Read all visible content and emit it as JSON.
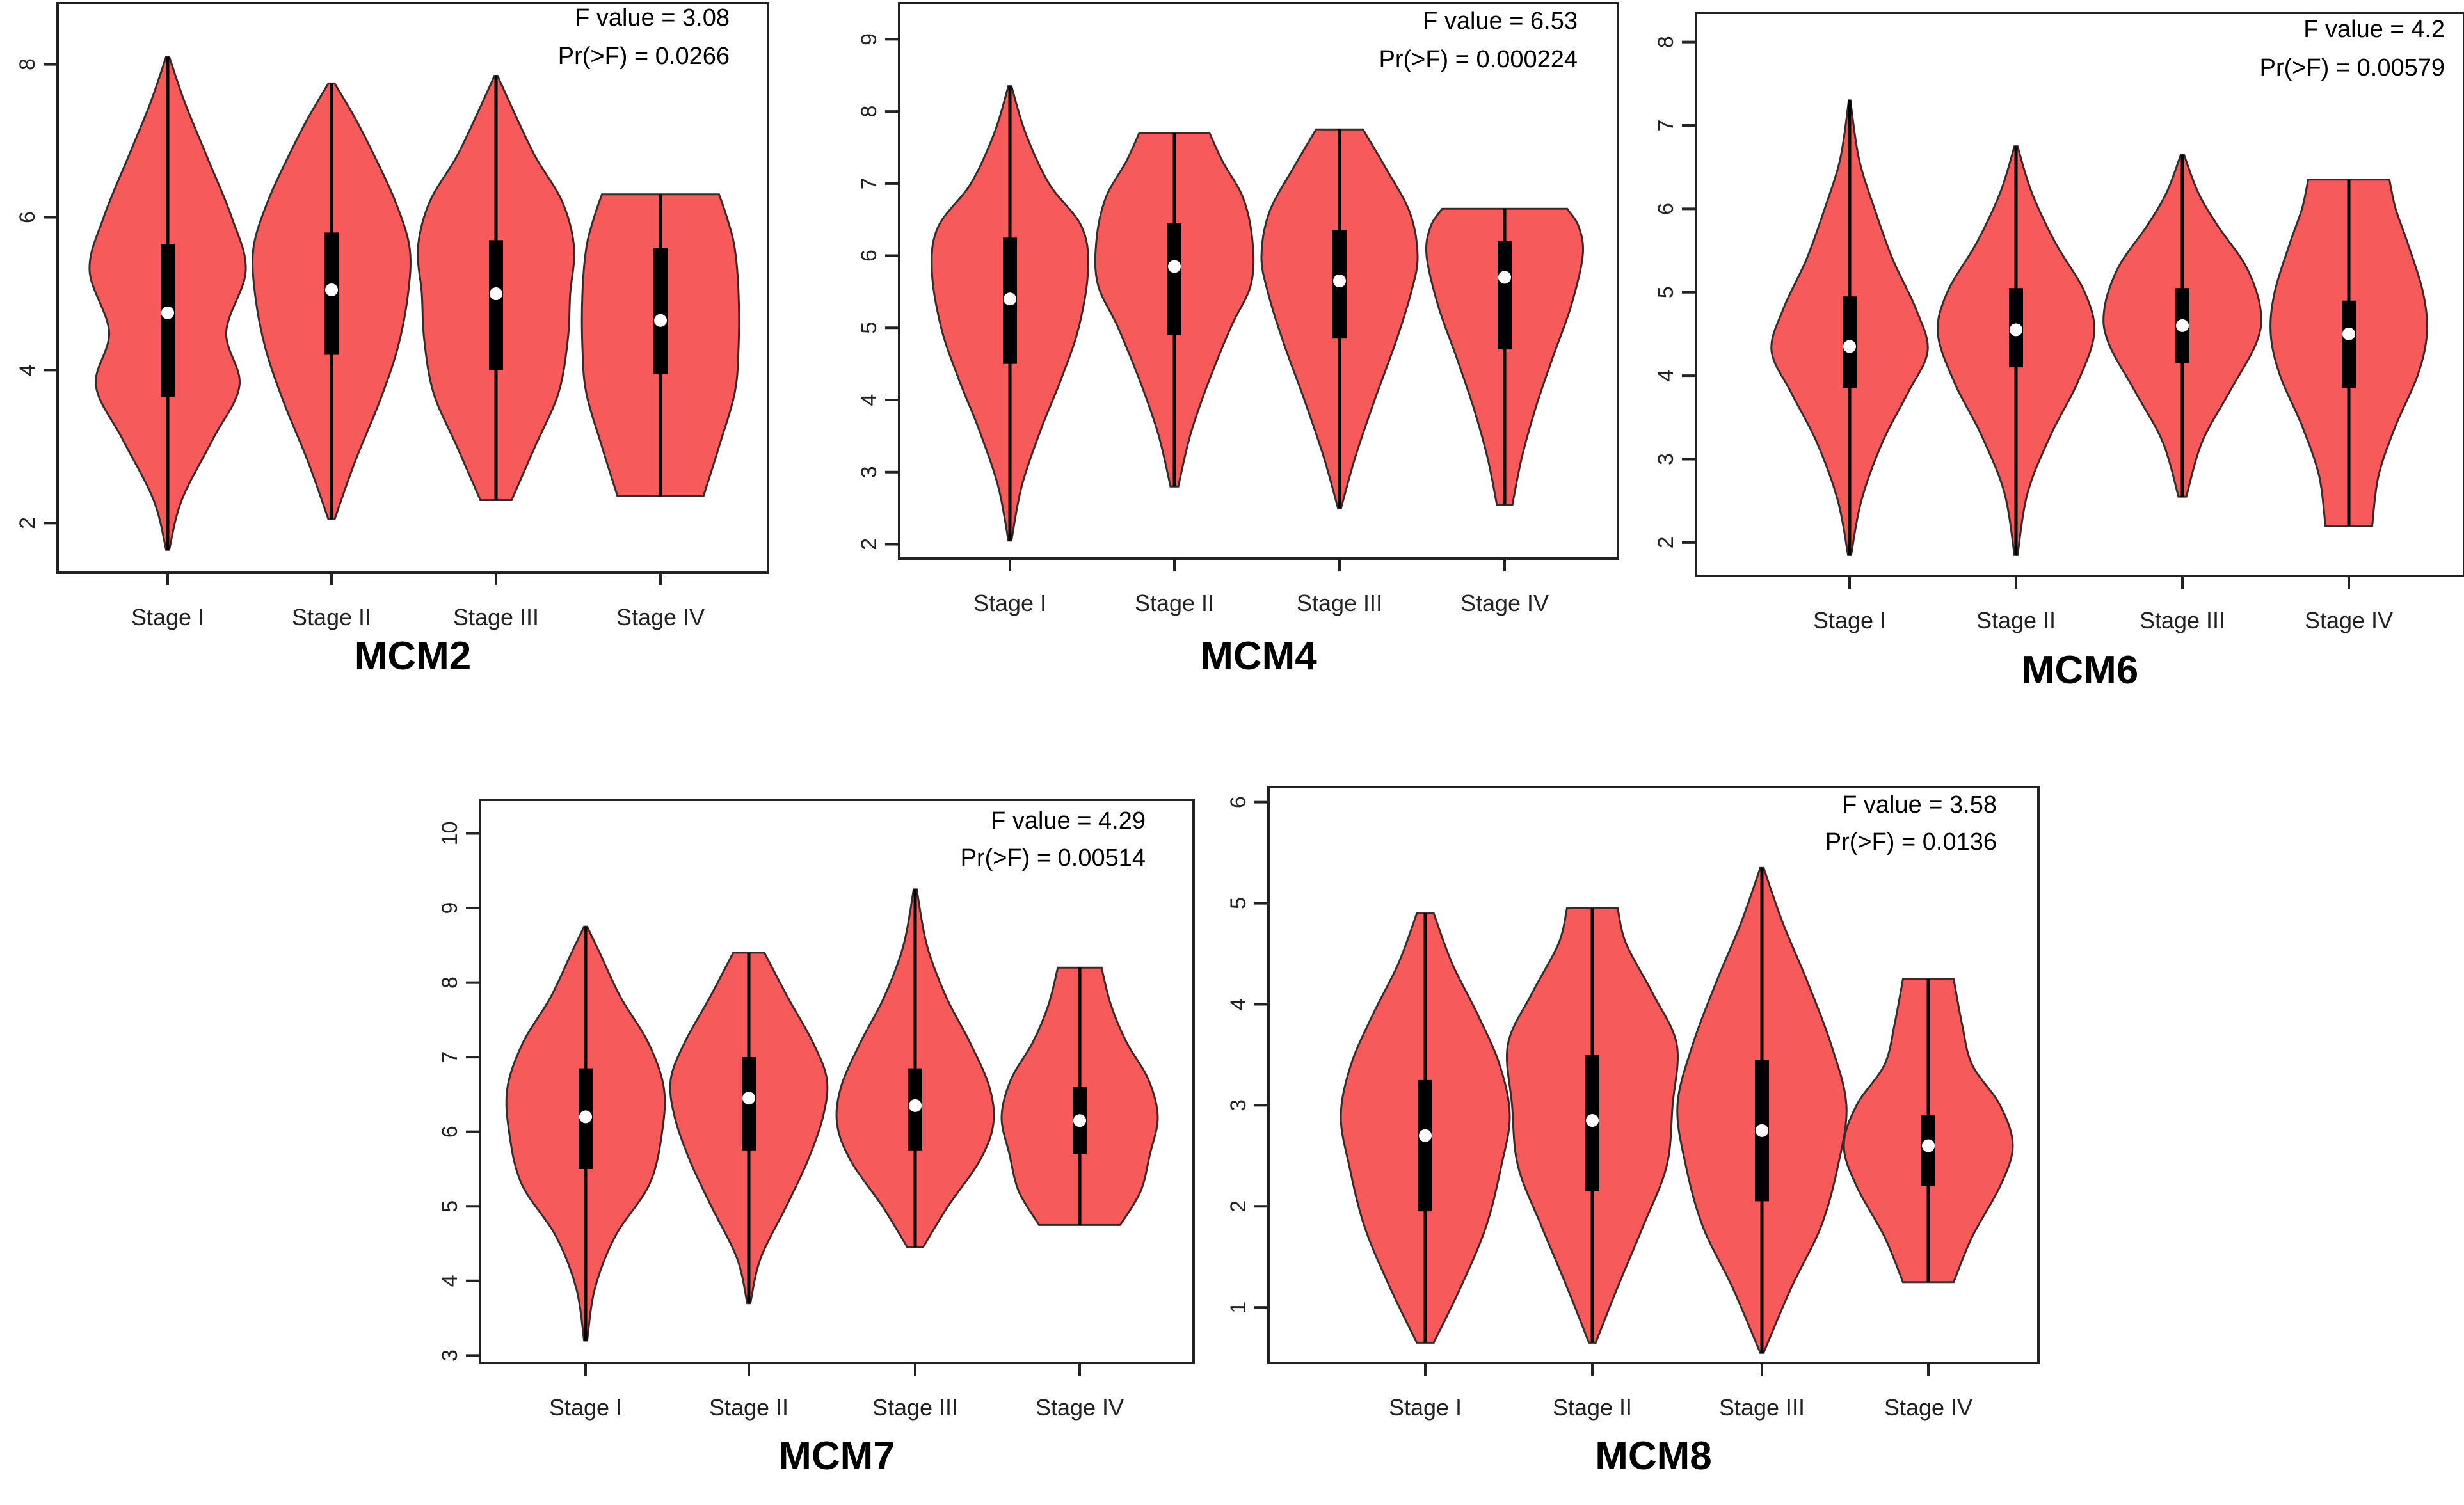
{
  "chart_data": [
    {
      "type": "violin",
      "title": "MCM2",
      "annotation": {
        "f_value": "F value = 3.08",
        "p_value": "Pr(>F) = 0.0266"
      },
      "categories": [
        "Stage I",
        "Stage II",
        "Stage III",
        "Stage IV"
      ],
      "yticks": [
        "2",
        "4",
        "6",
        "8"
      ],
      "ylim": [
        1.35,
        8.8
      ],
      "fill_color": "#f75a5a",
      "violins": [
        {
          "category": "Stage I",
          "min": 1.65,
          "max": 8.1,
          "q1": 3.65,
          "median": 4.75,
          "q3": 5.65,
          "shape": [
            [
              1.65,
              0.02
            ],
            [
              2.3,
              0.18
            ],
            [
              3.1,
              0.58
            ],
            [
              3.8,
              0.92
            ],
            [
              4.5,
              0.75
            ],
            [
              5.3,
              1.0
            ],
            [
              6.0,
              0.82
            ],
            [
              6.8,
              0.5
            ],
            [
              7.5,
              0.22
            ],
            [
              8.1,
              0.02
            ]
          ]
        },
        {
          "category": "Stage II",
          "min": 2.05,
          "max": 7.75,
          "q1": 4.2,
          "median": 5.05,
          "q3": 5.8,
          "shape": [
            [
              2.05,
              0.04
            ],
            [
              2.8,
              0.3
            ],
            [
              3.6,
              0.62
            ],
            [
              4.3,
              0.85
            ],
            [
              5.0,
              0.98
            ],
            [
              5.6,
              1.0
            ],
            [
              6.2,
              0.82
            ],
            [
              6.8,
              0.55
            ],
            [
              7.3,
              0.3
            ],
            [
              7.75,
              0.04
            ]
          ]
        },
        {
          "category": "Stage III",
          "min": 2.3,
          "max": 7.85,
          "q1": 4.0,
          "median": 5.0,
          "q3": 5.7,
          "shape": [
            [
              2.3,
              0.2
            ],
            [
              3.0,
              0.5
            ],
            [
              3.7,
              0.8
            ],
            [
              4.4,
              0.92
            ],
            [
              5.0,
              0.95
            ],
            [
              5.6,
              1.0
            ],
            [
              6.2,
              0.85
            ],
            [
              6.8,
              0.5
            ],
            [
              7.4,
              0.22
            ],
            [
              7.85,
              0.02
            ]
          ]
        },
        {
          "category": "Stage IV",
          "min": 2.35,
          "max": 6.3,
          "q1": 3.95,
          "median": 4.65,
          "q3": 5.6,
          "shape": [
            [
              2.35,
              0.55
            ],
            [
              3.0,
              0.75
            ],
            [
              3.7,
              0.95
            ],
            [
              4.3,
              1.0
            ],
            [
              5.0,
              1.0
            ],
            [
              5.6,
              0.95
            ],
            [
              6.0,
              0.85
            ],
            [
              6.3,
              0.75
            ]
          ]
        }
      ]
    },
    {
      "type": "violin",
      "title": "MCM4",
      "annotation": {
        "f_value": "F value = 6.53",
        "p_value": "Pr(>F) = 0.000224"
      },
      "categories": [
        "Stage I",
        "Stage II",
        "Stage III",
        "Stage IV"
      ],
      "yticks": [
        "2",
        "3",
        "4",
        "5",
        "6",
        "7",
        "8",
        "9"
      ],
      "ylim": [
        1.8,
        9.5
      ],
      "fill_color": "#f75a5a",
      "violins": [
        {
          "category": "Stage I",
          "min": 2.05,
          "max": 8.35,
          "q1": 4.5,
          "median": 5.4,
          "q3": 6.25,
          "shape": [
            [
              2.05,
              0.02
            ],
            [
              2.8,
              0.15
            ],
            [
              3.6,
              0.4
            ],
            [
              4.3,
              0.66
            ],
            [
              5.0,
              0.88
            ],
            [
              5.8,
              1.0
            ],
            [
              6.4,
              0.92
            ],
            [
              7.0,
              0.5
            ],
            [
              7.7,
              0.2
            ],
            [
              8.35,
              0.02
            ]
          ]
        },
        {
          "category": "Stage II",
          "min": 2.8,
          "max": 7.7,
          "q1": 4.9,
          "median": 5.85,
          "q3": 6.45,
          "shape": [
            [
              2.8,
              0.05
            ],
            [
              3.5,
              0.2
            ],
            [
              4.2,
              0.42
            ],
            [
              5.0,
              0.72
            ],
            [
              5.6,
              0.98
            ],
            [
              6.2,
              1.0
            ],
            [
              6.8,
              0.88
            ],
            [
              7.3,
              0.62
            ],
            [
              7.7,
              0.45
            ]
          ]
        },
        {
          "category": "Stage III",
          "min": 2.5,
          "max": 7.75,
          "q1": 4.85,
          "median": 5.65,
          "q3": 6.35,
          "shape": [
            [
              2.5,
              0.02
            ],
            [
              3.2,
              0.2
            ],
            [
              4.0,
              0.45
            ],
            [
              4.8,
              0.72
            ],
            [
              5.5,
              0.92
            ],
            [
              6.0,
              1.0
            ],
            [
              6.6,
              0.9
            ],
            [
              7.2,
              0.6
            ],
            [
              7.75,
              0.3
            ]
          ]
        },
        {
          "category": "Stage IV",
          "min": 2.55,
          "max": 6.65,
          "q1": 4.7,
          "median": 5.7,
          "q3": 6.2,
          "shape": [
            [
              2.55,
              0.1
            ],
            [
              3.2,
              0.22
            ],
            [
              3.9,
              0.4
            ],
            [
              4.6,
              0.62
            ],
            [
              5.3,
              0.85
            ],
            [
              6.0,
              1.0
            ],
            [
              6.4,
              0.95
            ],
            [
              6.65,
              0.8
            ]
          ]
        }
      ]
    },
    {
      "type": "violin",
      "title": "MCM6",
      "annotation": {
        "f_value": "F value = 4.2",
        "p_value": "Pr(>F) = 0.00579"
      },
      "categories": [
        "Stage I",
        "Stage II",
        "Stage III",
        "Stage IV"
      ],
      "yticks": [
        "2",
        "3",
        "4",
        "5",
        "6",
        "7",
        "8"
      ],
      "ylim": [
        1.6,
        8.35
      ],
      "fill_color": "#f75a5a",
      "violins": [
        {
          "category": "Stage I",
          "min": 1.85,
          "max": 7.3,
          "q1": 3.85,
          "median": 4.35,
          "q3": 4.95,
          "shape": [
            [
              1.85,
              0.02
            ],
            [
              2.5,
              0.15
            ],
            [
              3.2,
              0.42
            ],
            [
              3.8,
              0.75
            ],
            [
              4.3,
              1.0
            ],
            [
              4.8,
              0.85
            ],
            [
              5.4,
              0.55
            ],
            [
              6.0,
              0.32
            ],
            [
              6.6,
              0.12
            ],
            [
              7.3,
              0.01
            ]
          ]
        },
        {
          "category": "Stage II",
          "min": 1.85,
          "max": 6.75,
          "q1": 4.1,
          "median": 4.55,
          "q3": 5.05,
          "shape": [
            [
              1.85,
              0.02
            ],
            [
              2.6,
              0.15
            ],
            [
              3.3,
              0.45
            ],
            [
              3.9,
              0.78
            ],
            [
              4.5,
              1.0
            ],
            [
              5.0,
              0.88
            ],
            [
              5.6,
              0.5
            ],
            [
              6.2,
              0.2
            ],
            [
              6.75,
              0.02
            ]
          ]
        },
        {
          "category": "Stage III",
          "min": 2.55,
          "max": 6.65,
          "q1": 4.15,
          "median": 4.6,
          "q3": 5.05,
          "shape": [
            [
              2.55,
              0.05
            ],
            [
              3.2,
              0.25
            ],
            [
              3.8,
              0.6
            ],
            [
              4.4,
              0.95
            ],
            [
              4.8,
              1.0
            ],
            [
              5.3,
              0.82
            ],
            [
              5.8,
              0.45
            ],
            [
              6.2,
              0.2
            ],
            [
              6.65,
              0.02
            ]
          ]
        },
        {
          "category": "Stage IV",
          "min": 2.2,
          "max": 6.35,
          "q1": 3.85,
          "median": 4.5,
          "q3": 4.9,
          "shape": [
            [
              2.2,
              0.3
            ],
            [
              2.8,
              0.38
            ],
            [
              3.4,
              0.6
            ],
            [
              4.0,
              0.88
            ],
            [
              4.5,
              1.0
            ],
            [
              5.0,
              0.95
            ],
            [
              5.6,
              0.75
            ],
            [
              6.0,
              0.6
            ],
            [
              6.35,
              0.52
            ]
          ]
        }
      ]
    },
    {
      "type": "violin",
      "title": "MCM7",
      "annotation": {
        "f_value": "F value = 4.29",
        "p_value": "Pr(>F) = 0.00514"
      },
      "categories": [
        "Stage I",
        "Stage II",
        "Stage III",
        "Stage IV"
      ],
      "yticks": [
        "3",
        "4",
        "5",
        "6",
        "7",
        "8",
        "9",
        "10"
      ],
      "ylim": [
        2.9,
        10.45
      ],
      "fill_color": "#f75a5a",
      "violins": [
        {
          "category": "Stage I",
          "min": 3.2,
          "max": 8.75,
          "q1": 5.5,
          "median": 6.2,
          "q3": 6.85,
          "shape": [
            [
              3.2,
              0.02
            ],
            [
              3.9,
              0.12
            ],
            [
              4.6,
              0.38
            ],
            [
              5.3,
              0.82
            ],
            [
              6.0,
              0.98
            ],
            [
              6.6,
              1.0
            ],
            [
              7.2,
              0.8
            ],
            [
              7.8,
              0.45
            ],
            [
              8.4,
              0.18
            ],
            [
              8.75,
              0.02
            ]
          ]
        },
        {
          "category": "Stage II",
          "min": 3.7,
          "max": 8.4,
          "q1": 5.75,
          "median": 6.45,
          "q3": 7.0,
          "shape": [
            [
              3.7,
              0.02
            ],
            [
              4.3,
              0.15
            ],
            [
              5.0,
              0.48
            ],
            [
              5.6,
              0.75
            ],
            [
              6.2,
              0.95
            ],
            [
              6.7,
              1.0
            ],
            [
              7.2,
              0.82
            ],
            [
              7.8,
              0.5
            ],
            [
              8.4,
              0.2
            ]
          ]
        },
        {
          "category": "Stage III",
          "min": 4.45,
          "max": 9.25,
          "q1": 5.75,
          "median": 6.35,
          "q3": 6.85,
          "shape": [
            [
              4.45,
              0.1
            ],
            [
              5.0,
              0.42
            ],
            [
              5.6,
              0.82
            ],
            [
              6.1,
              1.0
            ],
            [
              6.6,
              0.95
            ],
            [
              7.2,
              0.7
            ],
            [
              7.8,
              0.4
            ],
            [
              8.5,
              0.15
            ],
            [
              9.25,
              0.02
            ]
          ]
        },
        {
          "category": "Stage IV",
          "min": 4.75,
          "max": 8.2,
          "q1": 5.7,
          "median": 6.15,
          "q3": 6.6,
          "shape": [
            [
              4.75,
              0.52
            ],
            [
              5.2,
              0.78
            ],
            [
              5.7,
              0.9
            ],
            [
              6.2,
              1.0
            ],
            [
              6.7,
              0.88
            ],
            [
              7.2,
              0.6
            ],
            [
              7.7,
              0.4
            ],
            [
              8.2,
              0.28
            ]
          ]
        }
      ]
    },
    {
      "type": "violin",
      "title": "MCM8",
      "annotation": {
        "f_value": "F value = 3.58",
        "p_value": "Pr(>F) = 0.0136"
      },
      "categories": [
        "Stage I",
        "Stage II",
        "Stage III",
        "Stage IV"
      ],
      "yticks": [
        "1",
        "2",
        "3",
        "4",
        "5",
        "6"
      ],
      "ylim": [
        0.45,
        6.15
      ],
      "fill_color": "#f75a5a",
      "violins": [
        {
          "category": "Stage I",
          "min": 0.65,
          "max": 4.9,
          "q1": 1.95,
          "median": 2.7,
          "q3": 3.25,
          "shape": [
            [
              0.65,
              0.1
            ],
            [
              1.2,
              0.42
            ],
            [
              1.8,
              0.72
            ],
            [
              2.4,
              0.9
            ],
            [
              2.9,
              1.0
            ],
            [
              3.4,
              0.88
            ],
            [
              3.9,
              0.62
            ],
            [
              4.4,
              0.32
            ],
            [
              4.9,
              0.1
            ]
          ]
        },
        {
          "category": "Stage II",
          "min": 0.65,
          "max": 4.95,
          "q1": 2.15,
          "median": 2.85,
          "q3": 3.5,
          "shape": [
            [
              0.65,
              0.04
            ],
            [
              1.2,
              0.3
            ],
            [
              1.8,
              0.6
            ],
            [
              2.4,
              0.88
            ],
            [
              3.0,
              0.95
            ],
            [
              3.6,
              1.0
            ],
            [
              4.1,
              0.72
            ],
            [
              4.6,
              0.4
            ],
            [
              4.95,
              0.3
            ]
          ]
        },
        {
          "category": "Stage III",
          "min": 0.55,
          "max": 5.35,
          "q1": 2.05,
          "median": 2.75,
          "q3": 3.45,
          "shape": [
            [
              0.55,
              0.02
            ],
            [
              1.2,
              0.35
            ],
            [
              1.8,
              0.7
            ],
            [
              2.4,
              0.9
            ],
            [
              3.0,
              1.0
            ],
            [
              3.6,
              0.82
            ],
            [
              4.2,
              0.55
            ],
            [
              4.8,
              0.25
            ],
            [
              5.35,
              0.02
            ]
          ]
        },
        {
          "category": "Stage IV",
          "min": 1.25,
          "max": 4.25,
          "q1": 2.2,
          "median": 2.6,
          "q3": 2.9,
          "shape": [
            [
              1.25,
              0.3
            ],
            [
              1.7,
              0.52
            ],
            [
              2.2,
              0.85
            ],
            [
              2.6,
              1.0
            ],
            [
              3.0,
              0.85
            ],
            [
              3.4,
              0.52
            ],
            [
              3.8,
              0.4
            ],
            [
              4.25,
              0.3
            ]
          ]
        }
      ]
    }
  ]
}
